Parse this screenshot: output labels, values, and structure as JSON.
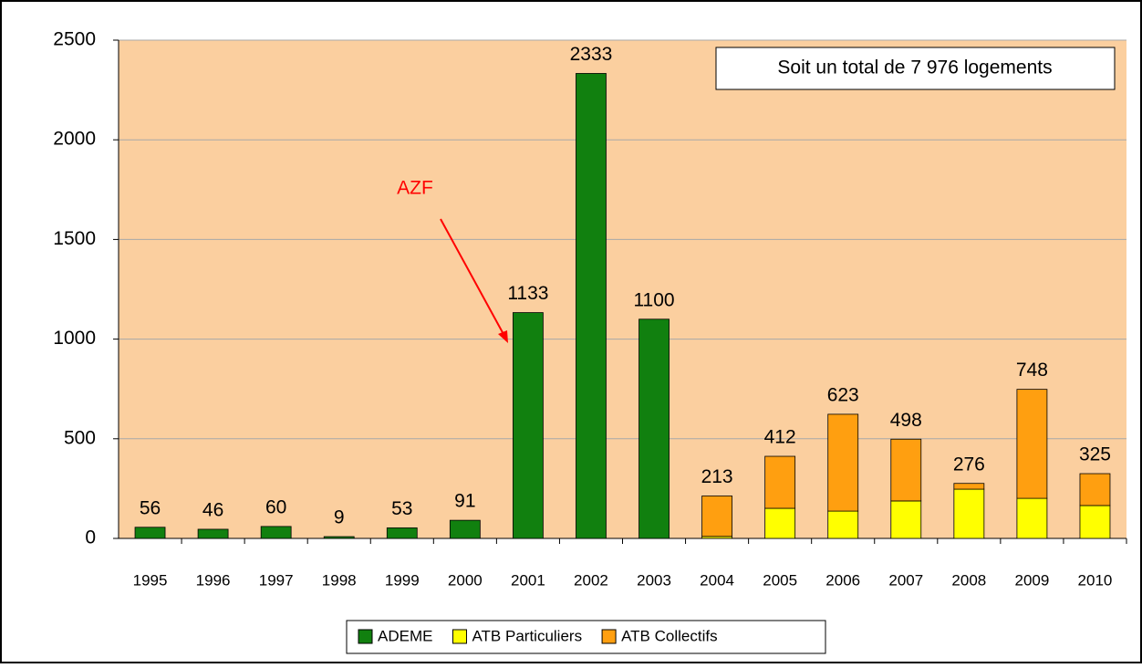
{
  "chart_data": {
    "type": "stacked_bar",
    "categories": [
      "1995",
      "1996",
      "1997",
      "1998",
      "1999",
      "2000",
      "2001",
      "2002",
      "2003",
      "2004",
      "2005",
      "2006",
      "2007",
      "2008",
      "2009",
      "2010"
    ],
    "series": [
      {
        "name": "ADEME",
        "color": "#11800f",
        "values": [
          56,
          46,
          60,
          9,
          53,
          91,
          1133,
          2333,
          1100,
          null,
          null,
          null,
          null,
          null,
          null,
          null
        ]
      },
      {
        "name": "ATB Particuliers",
        "color": "#ffff00",
        "values": [
          null,
          null,
          null,
          null,
          null,
          null,
          null,
          null,
          null,
          10,
          151,
          137,
          188,
          247,
          201,
          165
        ]
      },
      {
        "name": "ATB Collectifs",
        "color": "#ff9f10",
        "values": [
          null,
          null,
          null,
          null,
          null,
          null,
          null,
          null,
          null,
          203,
          261,
          486,
          310,
          29,
          547,
          160
        ]
      }
    ],
    "totals": [
      56,
      46,
      60,
      9,
      53,
      91,
      1133,
      2333,
      1100,
      213,
      412,
      623,
      498,
      276,
      748,
      325
    ],
    "ylim": [
      0,
      2500
    ],
    "yticks": [
      0,
      500,
      1000,
      1500,
      2000,
      2500
    ],
    "grid": true,
    "annotation": "AZF",
    "note": "Soit un total de 7 976 logements",
    "legend": "bottom"
  }
}
